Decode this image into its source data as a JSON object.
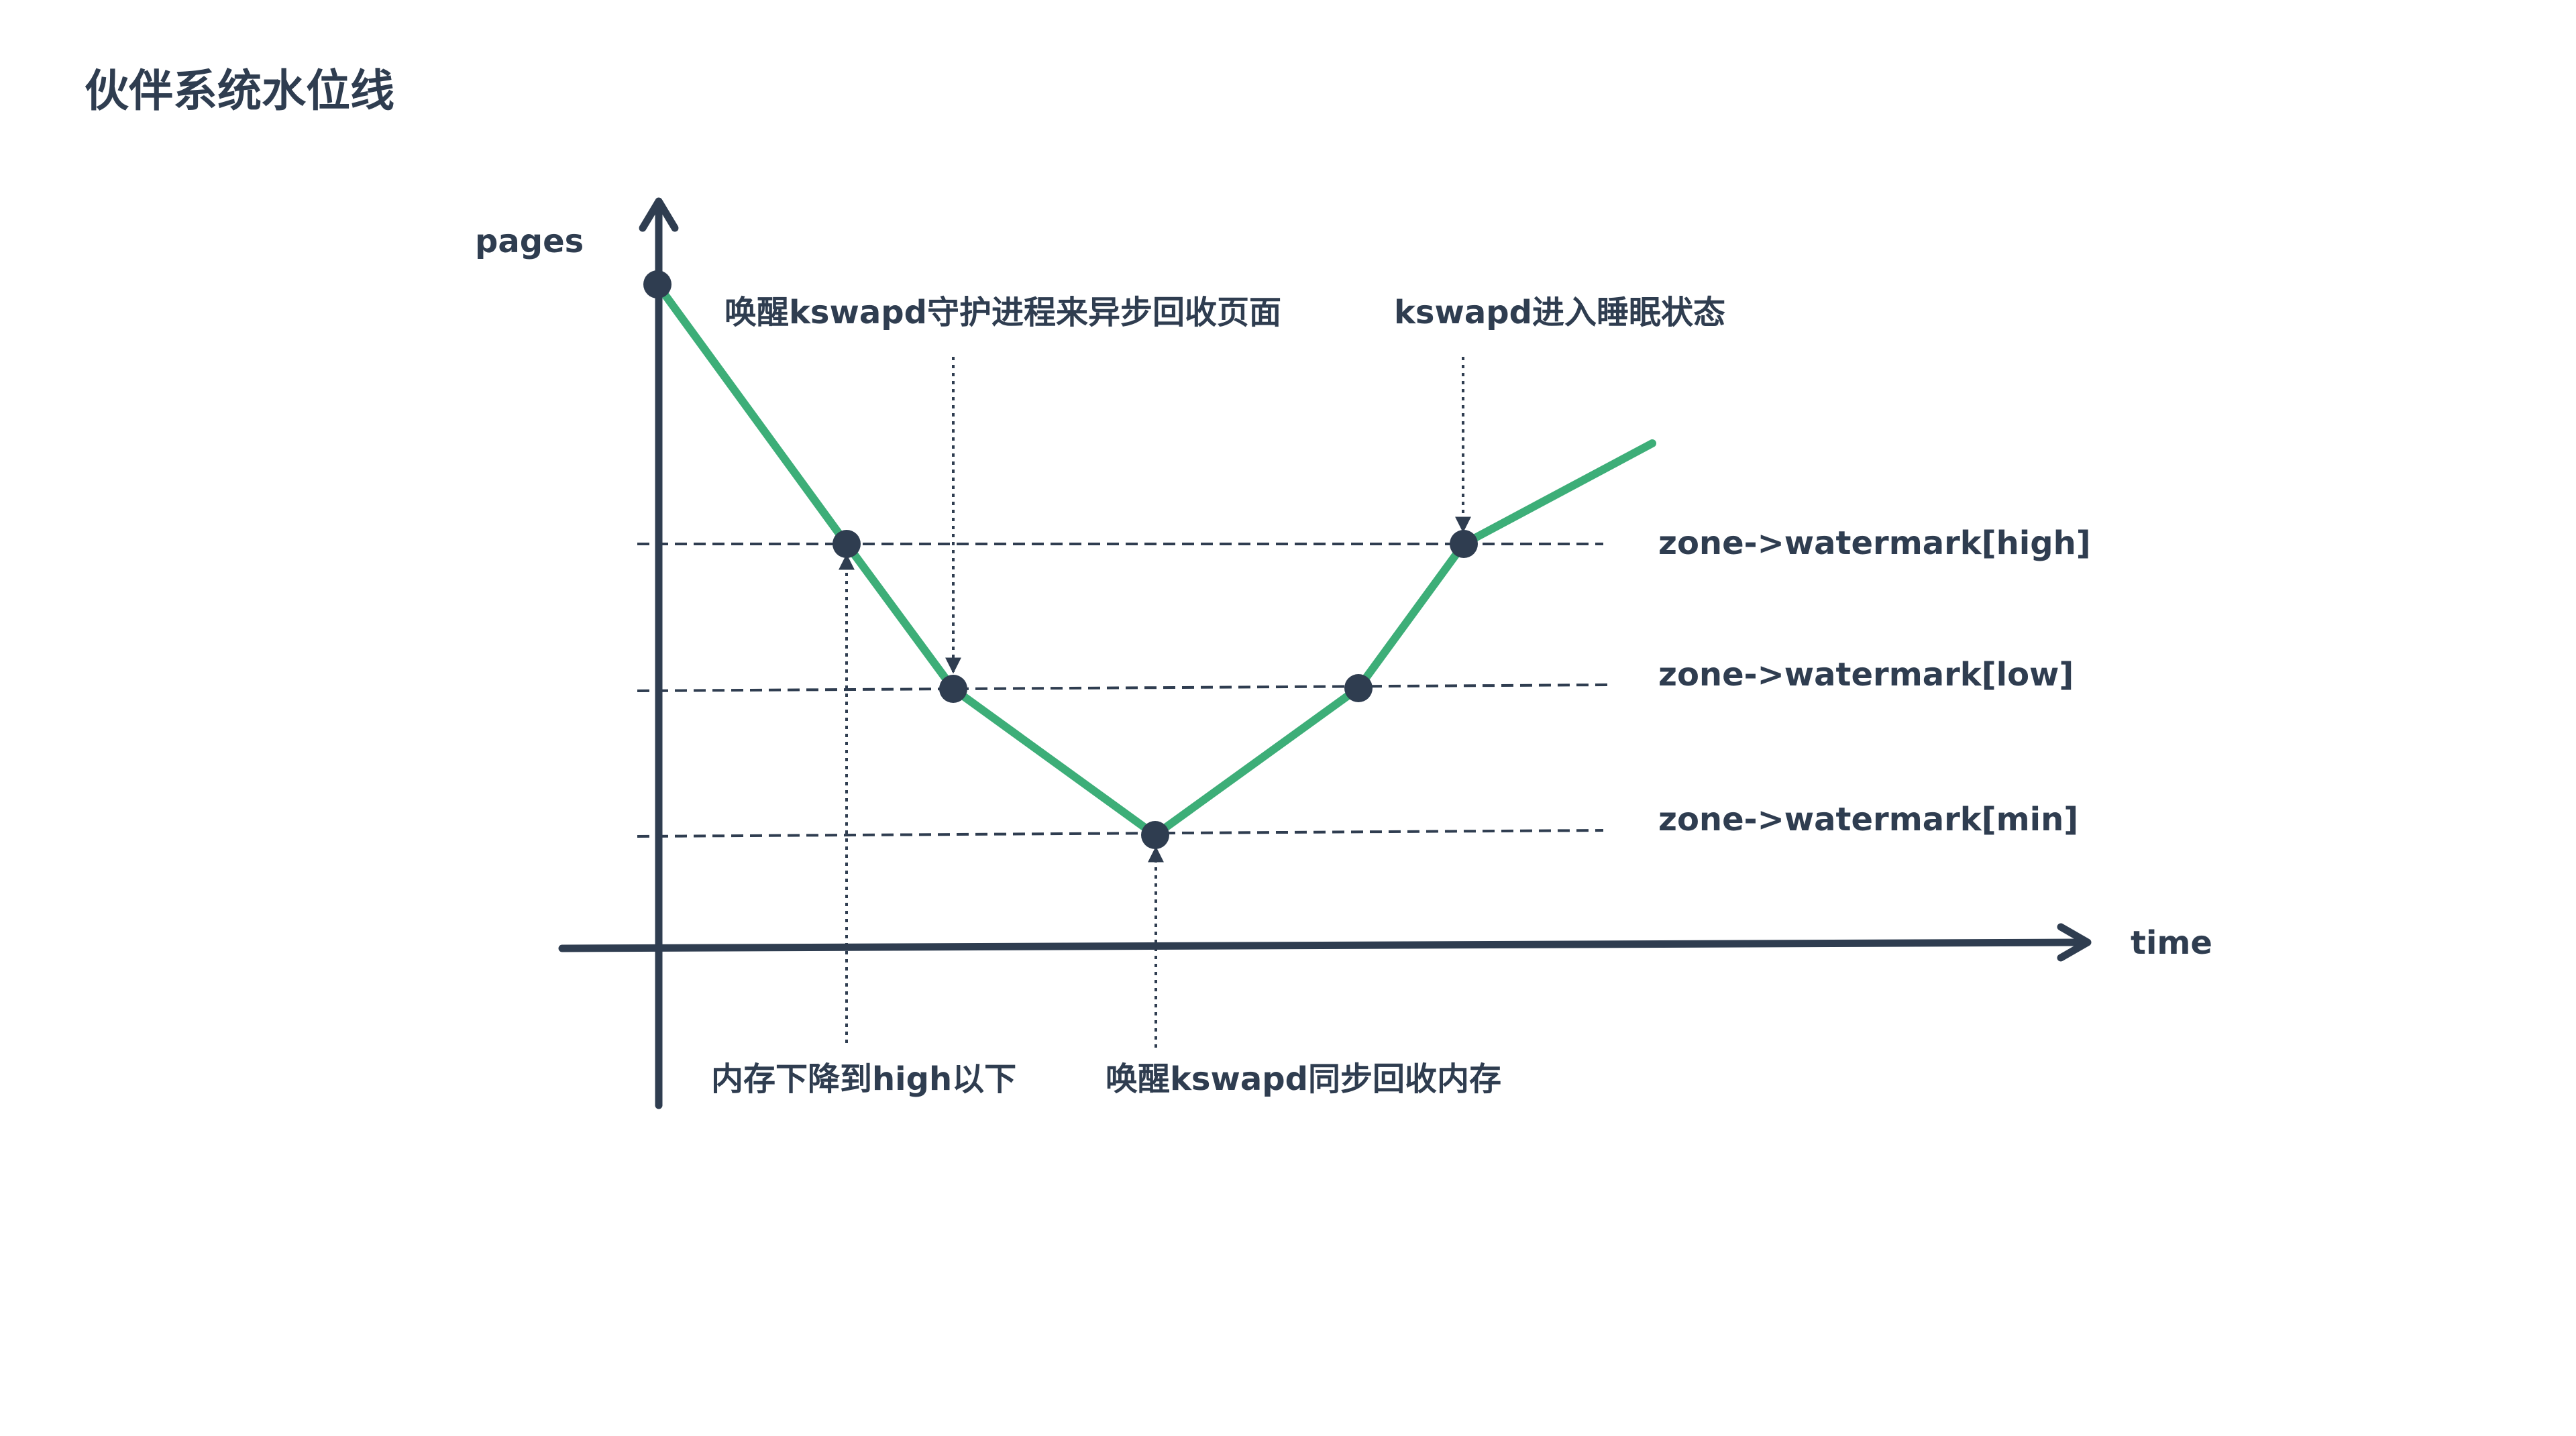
{
  "title": "伙伴系统水位线",
  "axes": {
    "y_label": "pages",
    "x_label": "time"
  },
  "watermarks": [
    {
      "id": "high",
      "label": "zone->watermark[high]"
    },
    {
      "id": "low",
      "label": "zone->watermark[low]"
    },
    {
      "id": "min",
      "label": "zone->watermark[min]"
    }
  ],
  "annotations": {
    "async_wake": "唤醒kswapd守护进程来异步回收页面",
    "sleep": "kswapd进入睡眠状态",
    "below_high": "内存下降到high以下",
    "sync_wake": "唤醒kswapd同步回收内存"
  },
  "colors": {
    "line": "#3dae78",
    "ink": "#2f3d50"
  }
}
